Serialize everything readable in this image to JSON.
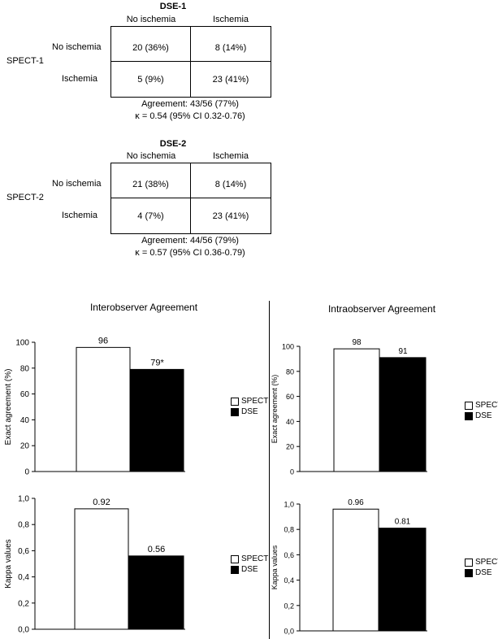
{
  "tables": [
    {
      "title": "DSE-1",
      "row_group": "SPECT-1",
      "col_headers": [
        "No ischemia",
        "Ischemia"
      ],
      "row_headers": [
        "No ischemia",
        "Ischemia"
      ],
      "cells": [
        [
          "20 (36%)",
          "8 (14%)"
        ],
        [
          "5 (9%)",
          "23 (41%)"
        ]
      ],
      "agreement": "Agreement: 43/56 (77%)",
      "kappa": "κ = 0.54 (95% CI 0.32-0.76)"
    },
    {
      "title": "DSE-2",
      "row_group": "SPECT-2",
      "col_headers": [
        "No ischemia",
        "Ischemia"
      ],
      "row_headers": [
        "No ischemia",
        "Ischemia"
      ],
      "cells": [
        [
          "21 (38%)",
          "8 (14%)"
        ],
        [
          "4 (7%)",
          "23 (41%)"
        ]
      ],
      "agreement": "Agreement: 44/56 (79%)",
      "kappa": "κ = 0.57 (95% CI 0.36-0.79)"
    }
  ],
  "panels": {
    "inter_title": "Interobserver Agreement",
    "intra_title": "Intraobserver Agreement"
  },
  "legend": [
    {
      "name": "SPECT",
      "color": "#ffffff"
    },
    {
      "name": "DSE",
      "color": "#000000"
    }
  ],
  "chart_data": [
    {
      "type": "bar",
      "panel": "Interobserver Agreement",
      "categories": [
        "SPECT",
        "DSE"
      ],
      "values": [
        96,
        79
      ],
      "labels": [
        "96",
        "79*"
      ],
      "ylabel": "Exact agreement (%)",
      "ylim": [
        0,
        100
      ],
      "yticks": [
        "0",
        "20",
        "40",
        "60",
        "80",
        "100"
      ]
    },
    {
      "type": "bar",
      "panel": "Interobserver Agreement",
      "categories": [
        "SPECT",
        "DSE"
      ],
      "values": [
        0.92,
        0.56
      ],
      "labels": [
        "0.92",
        "0.56"
      ],
      "ylabel": "Kappa values",
      "ylim": [
        0,
        1
      ],
      "yticks": [
        "0,0",
        "0,2",
        "0,4",
        "0,6",
        "0,8",
        "1,0"
      ]
    },
    {
      "type": "bar",
      "panel": "Intraobserver Agreement",
      "categories": [
        "SPECT",
        "DSE"
      ],
      "values": [
        98,
        91
      ],
      "labels": [
        "98",
        "91"
      ],
      "ylabel": "Exact agreement (%)",
      "ylim": [
        0,
        100
      ],
      "yticks": [
        "0",
        "20",
        "40",
        "60",
        "80",
        "100"
      ]
    },
    {
      "type": "bar",
      "panel": "Intraobserver Agreement",
      "categories": [
        "SPECT",
        "DSE"
      ],
      "values": [
        0.96,
        0.81
      ],
      "labels": [
        "0.96",
        "0.81"
      ],
      "ylabel": "Kappa values",
      "ylim": [
        0,
        1
      ],
      "yticks": [
        "0,0",
        "0,2",
        "0,4",
        "0,6",
        "0,8",
        "1,0"
      ]
    }
  ]
}
